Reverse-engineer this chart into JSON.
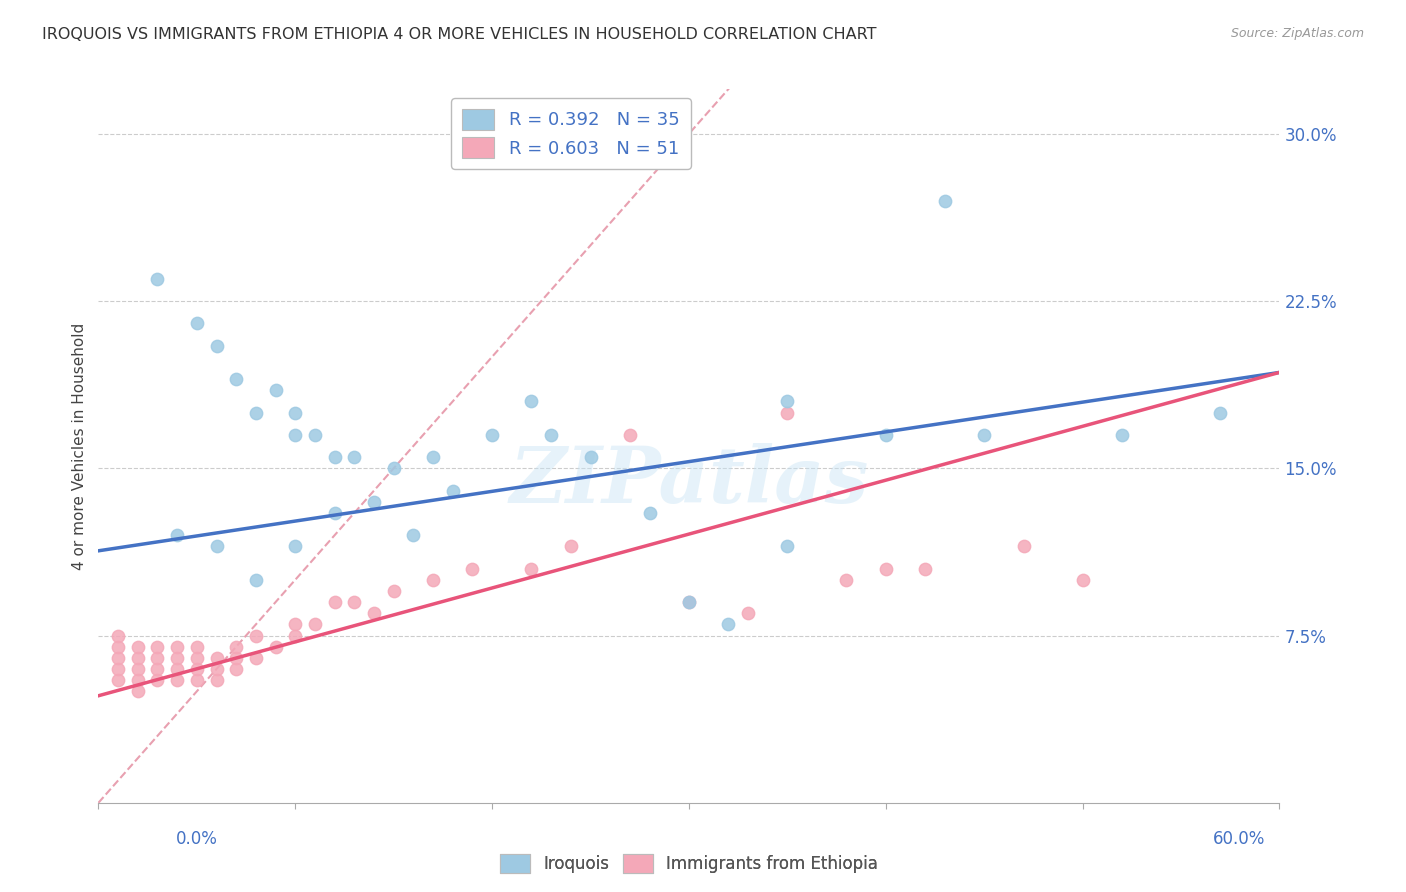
{
  "title": "IROQUOIS VS IMMIGRANTS FROM ETHIOPIA 4 OR MORE VEHICLES IN HOUSEHOLD CORRELATION CHART",
  "source": "Source: ZipAtlas.com",
  "ylabel": "4 or more Vehicles in Household",
  "yticks": [
    "7.5%",
    "15.0%",
    "22.5%",
    "30.0%"
  ],
  "ytick_vals": [
    0.075,
    0.15,
    0.225,
    0.3
  ],
  "xlim": [
    0.0,
    0.6
  ],
  "ylim": [
    0.0,
    0.32
  ],
  "legend_blue_label": "R = 0.392   N = 35",
  "legend_pink_label": "R = 0.603   N = 51",
  "legend_bottom_label1": "Iroquois",
  "legend_bottom_label2": "Immigrants from Ethiopia",
  "watermark": "ZIPatlas",
  "blue_scatter_x": [
    0.03,
    0.05,
    0.06,
    0.07,
    0.08,
    0.09,
    0.1,
    0.1,
    0.11,
    0.12,
    0.13,
    0.15,
    0.17,
    0.2,
    0.22,
    0.23,
    0.25,
    0.28,
    0.3,
    0.32,
    0.35,
    0.4,
    0.43,
    0.52,
    0.57,
    0.04,
    0.06,
    0.08,
    0.1,
    0.12,
    0.14,
    0.16,
    0.18,
    0.35,
    0.45
  ],
  "blue_scatter_y": [
    0.235,
    0.215,
    0.205,
    0.19,
    0.175,
    0.185,
    0.175,
    0.165,
    0.165,
    0.155,
    0.155,
    0.15,
    0.155,
    0.165,
    0.18,
    0.165,
    0.155,
    0.13,
    0.09,
    0.08,
    0.115,
    0.165,
    0.27,
    0.165,
    0.175,
    0.12,
    0.115,
    0.1,
    0.115,
    0.13,
    0.135,
    0.12,
    0.14,
    0.18,
    0.165
  ],
  "pink_scatter_x": [
    0.01,
    0.01,
    0.01,
    0.01,
    0.01,
    0.02,
    0.02,
    0.02,
    0.02,
    0.02,
    0.03,
    0.03,
    0.03,
    0.03,
    0.04,
    0.04,
    0.04,
    0.04,
    0.05,
    0.05,
    0.05,
    0.05,
    0.06,
    0.06,
    0.06,
    0.07,
    0.07,
    0.07,
    0.08,
    0.08,
    0.09,
    0.1,
    0.1,
    0.11,
    0.12,
    0.13,
    0.14,
    0.15,
    0.17,
    0.19,
    0.22,
    0.24,
    0.27,
    0.3,
    0.33,
    0.35,
    0.38,
    0.4,
    0.42,
    0.47,
    0.5
  ],
  "pink_scatter_y": [
    0.055,
    0.06,
    0.065,
    0.07,
    0.075,
    0.05,
    0.055,
    0.06,
    0.065,
    0.07,
    0.055,
    0.06,
    0.065,
    0.07,
    0.055,
    0.06,
    0.065,
    0.07,
    0.055,
    0.06,
    0.065,
    0.07,
    0.055,
    0.06,
    0.065,
    0.06,
    0.065,
    0.07,
    0.065,
    0.075,
    0.07,
    0.075,
    0.08,
    0.08,
    0.09,
    0.09,
    0.085,
    0.095,
    0.1,
    0.105,
    0.105,
    0.115,
    0.165,
    0.09,
    0.085,
    0.175,
    0.1,
    0.105,
    0.105,
    0.115,
    0.1
  ],
  "blue_color": "#9EC9E2",
  "pink_color": "#F4A8B8",
  "blue_line_color": "#4472C4",
  "pink_line_color": "#E8547A",
  "diagonal_color": "#E8A0B0",
  "blue_line_start_y": 0.113,
  "blue_line_end_y": 0.193,
  "pink_line_start_y": 0.048,
  "pink_line_end_y": 0.193
}
